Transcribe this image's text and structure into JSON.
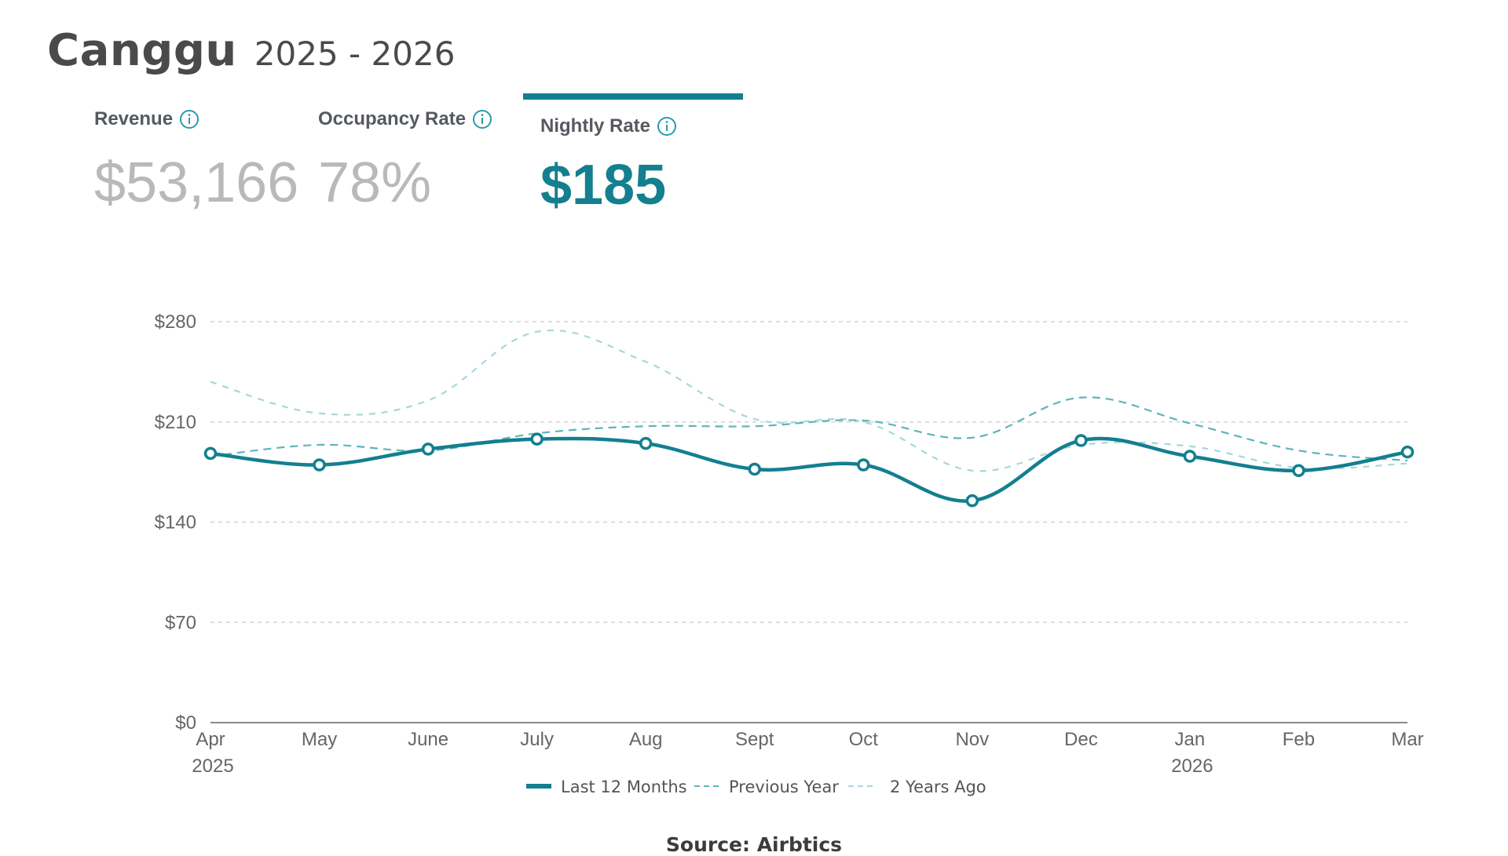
{
  "header": {
    "title": "Canggu",
    "subtitle": "2025 - 2026"
  },
  "metrics": [
    {
      "label": "Revenue",
      "value": "$53,166",
      "active": false
    },
    {
      "label": "Occupancy Rate",
      "value": "78%",
      "active": false
    },
    {
      "label": "Nightly Rate",
      "value": "$185",
      "active": true
    }
  ],
  "colors": {
    "accent": "#137f8f",
    "inactive_value": "#b9b9b9",
    "prev_year": "#5fb3bd",
    "two_years": "#a8d6db"
  },
  "chart_data": {
    "type": "line",
    "categories": [
      "Apr",
      "May",
      "June",
      "July",
      "Aug",
      "Sept",
      "Oct",
      "Nov",
      "Dec",
      "Jan",
      "Feb",
      "Mar"
    ],
    "year_labels": [
      {
        "at": "Apr",
        "text": "2025"
      },
      {
        "at": "Jan",
        "text": "2026"
      }
    ],
    "y_ticks": [
      "$0",
      "$70",
      "$140",
      "$210",
      "$280"
    ],
    "y_tick_values": [
      0,
      70,
      140,
      210,
      280
    ],
    "ylim": [
      0,
      290
    ],
    "grid": true,
    "legend_position": "bottom",
    "series": [
      {
        "name": "Last 12 Months",
        "style": "solid",
        "values": [
          188,
          180,
          191,
          198,
          195,
          177,
          180,
          155,
          197,
          186,
          176,
          189
        ]
      },
      {
        "name": "Previous Year",
        "style": "dashed",
        "values": [
          186,
          194,
          190,
          202,
          207,
          207,
          211,
          199,
          227,
          209,
          190,
          183
        ]
      },
      {
        "name": "2 Years Ago",
        "style": "dotted",
        "values": [
          238,
          216,
          225,
          273,
          252,
          212,
          210,
          176,
          194,
          193,
          178,
          181
        ]
      }
    ]
  },
  "source": "Source: Airbtics"
}
